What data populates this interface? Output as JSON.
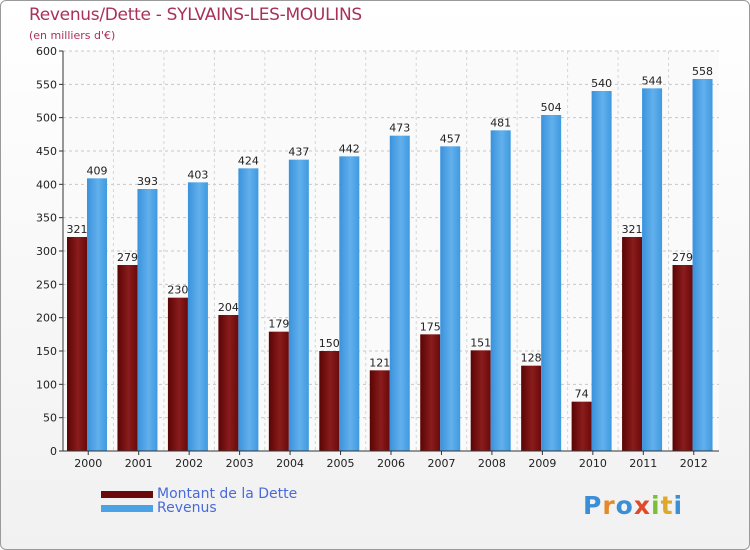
{
  "chart_data": {
    "type": "bar",
    "title": "Revenus/Dette - SYLVAINS-LES-MOULINS",
    "subtitle": "(en milliers d'€)",
    "categories": [
      "2000",
      "2001",
      "2002",
      "2003",
      "2004",
      "2005",
      "2006",
      "2007",
      "2008",
      "2009",
      "2010",
      "2011",
      "2012"
    ],
    "series": [
      {
        "name": "Montant de la Dette",
        "color": "#7a1010",
        "values": [
          321,
          279,
          230,
          204,
          179,
          150,
          121,
          175,
          151,
          128,
          74,
          321,
          279
        ]
      },
      {
        "name": "Revenus",
        "color": "#3f9ae0",
        "values": [
          409,
          393,
          403,
          424,
          437,
          442,
          473,
          457,
          481,
          504,
          540,
          544,
          558
        ]
      }
    ],
    "ylim": [
      0,
      600
    ],
    "yticks": [
      0,
      50,
      100,
      150,
      200,
      250,
      300,
      350,
      400,
      450,
      500,
      550,
      600
    ],
    "grid": true,
    "legend_position": "bottom-left"
  },
  "logo": {
    "letters": [
      {
        "ch": "P",
        "color": "#3b8fd6"
      },
      {
        "ch": "r",
        "color": "#e58a2a"
      },
      {
        "ch": "o",
        "color": "#3b8fd6"
      },
      {
        "ch": "x",
        "color": "#e04a2a"
      },
      {
        "ch": "i",
        "color": "#7cbd3a"
      },
      {
        "ch": "t",
        "color": "#e0a82a"
      },
      {
        "ch": "i",
        "color": "#3b8fd6"
      }
    ]
  }
}
